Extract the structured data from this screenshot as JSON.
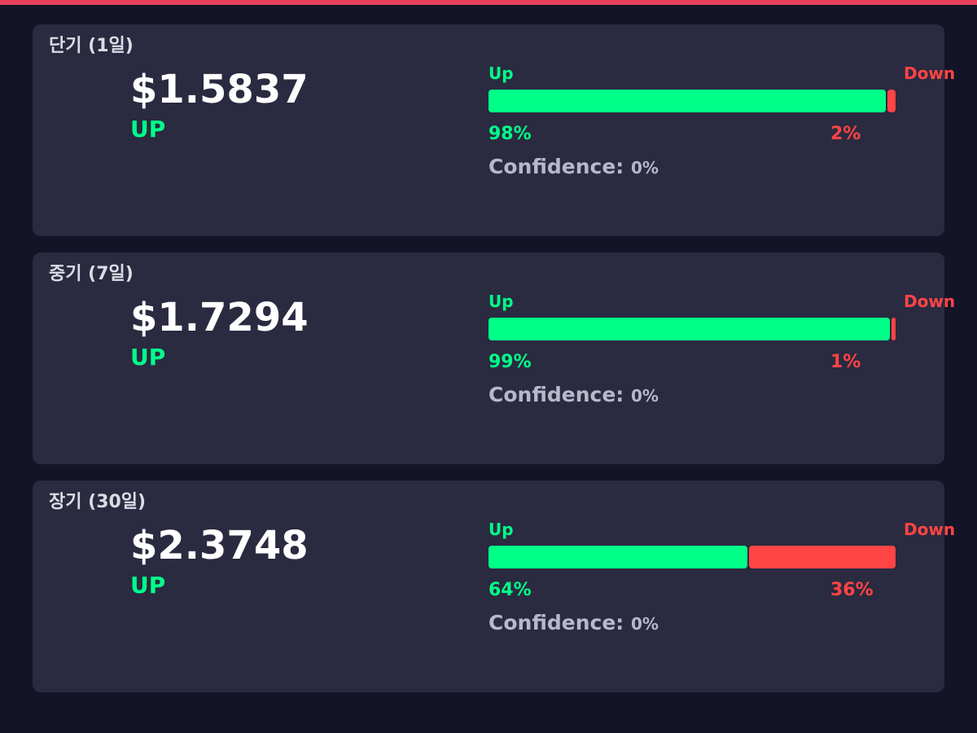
{
  "cards": [
    {
      "title": "단기 (1일)",
      "price": "$1.5837",
      "direction": "UP",
      "up_label": "Up",
      "down_label": "Down",
      "up": {
        "value": 98,
        "label": "98%"
      },
      "down": {
        "value": 2,
        "label": "2%"
      },
      "confidence_label": "Confidence:",
      "confidence_value": "0%"
    },
    {
      "title": "중기 (7일)",
      "price": "$1.7294",
      "direction": "UP",
      "up_label": "Up",
      "down_label": "Down",
      "up": {
        "value": 99,
        "label": "99%"
      },
      "down": {
        "value": 1,
        "label": "1%"
      },
      "confidence_label": "Confidence:",
      "confidence_value": "0%"
    },
    {
      "title": "장기 (30일)",
      "price": "$2.3748",
      "direction": "UP",
      "up_label": "Up",
      "down_label": "Down",
      "up": {
        "value": 64,
        "label": "64%"
      },
      "down": {
        "value": 36,
        "label": "36%"
      },
      "confidence_label": "Confidence:",
      "confidence_value": "0%"
    }
  ]
}
